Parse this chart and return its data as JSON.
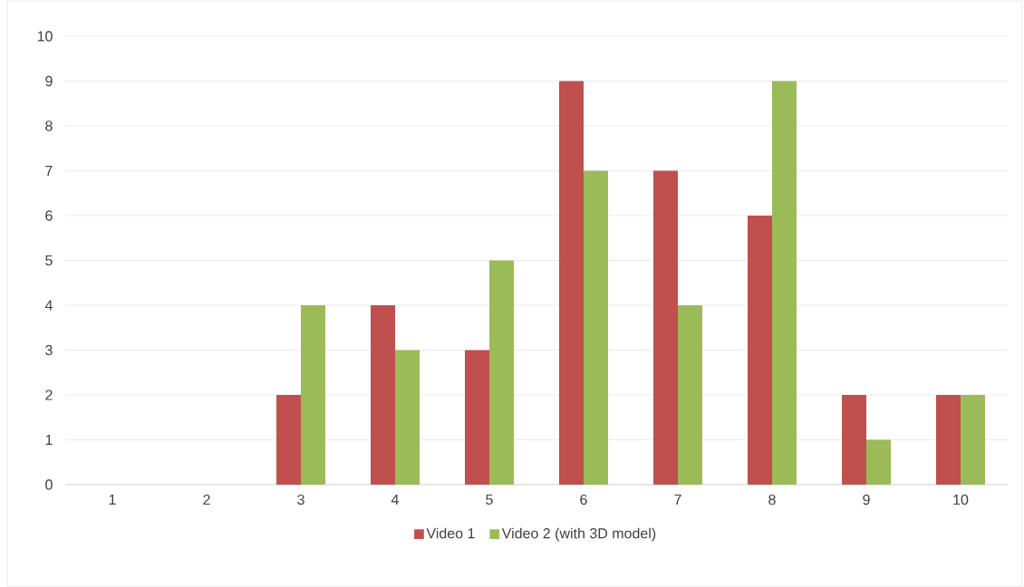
{
  "chart_data": {
    "type": "bar",
    "categories": [
      "1",
      "2",
      "3",
      "4",
      "5",
      "6",
      "7",
      "8",
      "9",
      "10"
    ],
    "series": [
      {
        "name": "Video 1",
        "color": "#c0504d",
        "values": [
          0,
          0,
          2,
          4,
          3,
          9,
          7,
          6,
          2,
          2
        ]
      },
      {
        "name": "Video 2 (with 3D model)",
        "color": "#9bbb59",
        "values": [
          0,
          0,
          4,
          3,
          5,
          7,
          4,
          9,
          1,
          2
        ]
      }
    ],
    "ylim": [
      0,
      10
    ],
    "yticks": [
      0,
      1,
      2,
      3,
      4,
      5,
      6,
      7,
      8,
      9,
      10
    ],
    "grid": "y",
    "legend": "bottom"
  }
}
